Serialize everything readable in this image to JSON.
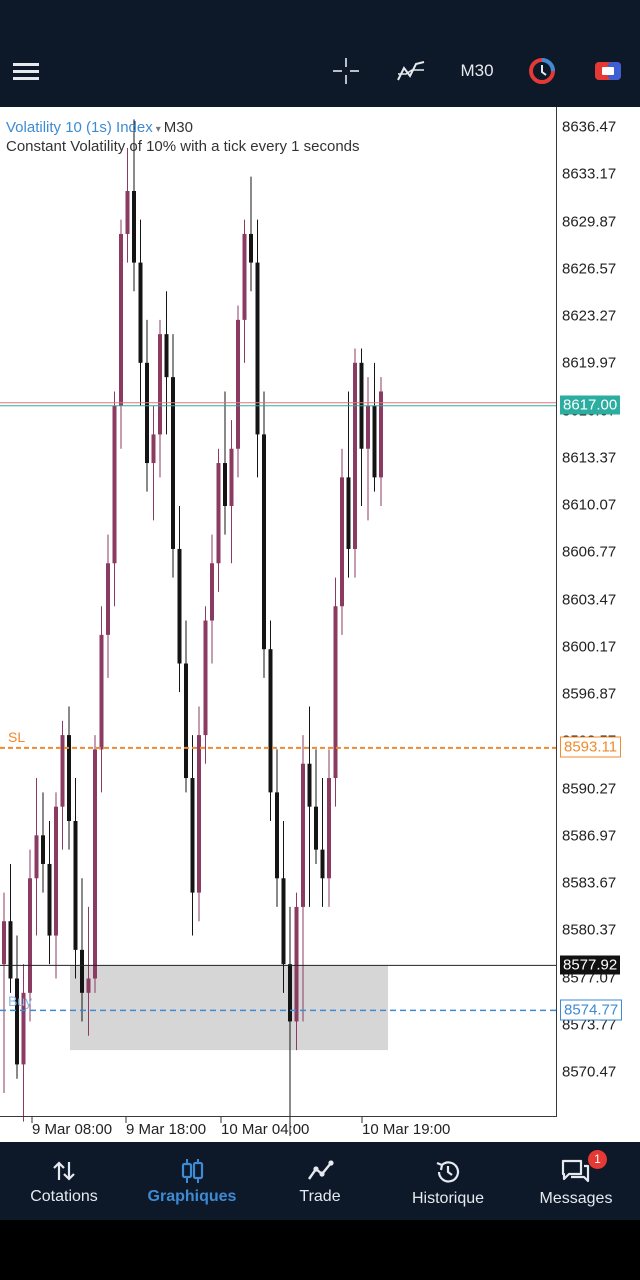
{
  "toolbar": {
    "timeframe": "M30",
    "icons": [
      "menu-icon",
      "crosshair-icon",
      "indicator-icon",
      "connection-icon",
      "one-click-trading-icon"
    ]
  },
  "chart": {
    "symbol": "Volatility 10 (1s) Index",
    "timeframe": "M30",
    "description": "Constant Volatility of 10% with a tick every 1 seconds",
    "sl_label": "SL",
    "buy_label": "Buy",
    "colors": {
      "up": "#8b3a62",
      "down": "#141414",
      "bid": "#2bada0",
      "sl": "#f08a2a",
      "buy": "#3d8bd3",
      "ask": "#e57373"
    },
    "tags": {
      "bid": "8617.00",
      "sl": "8593.11",
      "high": "8577.92",
      "buy": "8574.77"
    }
  },
  "chart_data": {
    "type": "candlestick",
    "y_ticks": [
      "8636.47",
      "8633.17",
      "8629.87",
      "8626.57",
      "8623.27",
      "8619.97",
      "8616.67",
      "8613.37",
      "8610.07",
      "8606.77",
      "8603.47",
      "8600.17",
      "8596.87",
      "8593.57",
      "8590.27",
      "8586.97",
      "8583.67",
      "8580.37",
      "8577.07",
      "8573.77",
      "8570.47"
    ],
    "x_ticks": [
      "9 Mar 08:00",
      "9 Mar 18:00",
      "10 Mar 04:00",
      "10 Mar 19:00"
    ],
    "ylim": [
      8568.4,
      8638.6
    ],
    "levels": {
      "bid": 8617.0,
      "sl": 8593.11,
      "high_line": 8577.92,
      "buy": 8574.77
    },
    "candles": [
      [
        8578,
        8583,
        8569,
        8581
      ],
      [
        8581,
        8585,
        8576,
        8577
      ],
      [
        8577,
        8580,
        8570,
        8571
      ],
      [
        8571,
        8578,
        8567,
        8576
      ],
      [
        8576,
        8586,
        8574,
        8584
      ],
      [
        8584,
        8591,
        8580,
        8587
      ],
      [
        8587,
        8590,
        8583,
        8585
      ],
      [
        8585,
        8588,
        8578,
        8580
      ],
      [
        8580,
        8590,
        8577,
        8589
      ],
      [
        8589,
        8595,
        8586,
        8594
      ],
      [
        8594,
        8596,
        8586,
        8588
      ],
      [
        8588,
        8591,
        8577,
        8579
      ],
      [
        8579,
        8584,
        8574,
        8576
      ],
      [
        8576,
        8582,
        8573,
        8577
      ],
      [
        8577,
        8594,
        8576,
        8593
      ],
      [
        8593,
        8603,
        8590,
        8601
      ],
      [
        8601,
        8608,
        8598,
        8606
      ],
      [
        8606,
        8618,
        8603,
        8617
      ],
      [
        8617,
        8630,
        8614,
        8629
      ],
      [
        8629,
        8635,
        8627,
        8632
      ],
      [
        8632,
        8637,
        8625,
        8627
      ],
      [
        8627,
        8630,
        8617,
        8620
      ],
      [
        8620,
        8623,
        8611,
        8613
      ],
      [
        8613,
        8617,
        8609,
        8615
      ],
      [
        8615,
        8623,
        8612,
        8622
      ],
      [
        8622,
        8625,
        8615,
        8619
      ],
      [
        8619,
        8622,
        8605,
        8607
      ],
      [
        8607,
        8610,
        8597,
        8599
      ],
      [
        8599,
        8602,
        8590,
        8591
      ],
      [
        8591,
        8594,
        8580,
        8583
      ],
      [
        8583,
        8596,
        8581,
        8594
      ],
      [
        8594,
        8603,
        8592,
        8602
      ],
      [
        8602,
        8608,
        8599,
        8606
      ],
      [
        8606,
        8614,
        8604,
        8613
      ],
      [
        8613,
        8618,
        8608,
        8610
      ],
      [
        8610,
        8616,
        8606,
        8614
      ],
      [
        8614,
        8624,
        8612,
        8623
      ],
      [
        8623,
        8630,
        8620,
        8629
      ],
      [
        8629,
        8633,
        8625,
        8627
      ],
      [
        8627,
        8630,
        8612,
        8615
      ],
      [
        8615,
        8618,
        8598,
        8600
      ],
      [
        8600,
        8602,
        8588,
        8590
      ],
      [
        8590,
        8593,
        8582,
        8584
      ],
      [
        8584,
        8588,
        8576,
        8578
      ],
      [
        8578,
        8582,
        8566,
        8574
      ],
      [
        8574,
        8583,
        8572,
        8582
      ],
      [
        8582,
        8594,
        8574,
        8592
      ],
      [
        8592,
        8596,
        8582,
        8589
      ],
      [
        8589,
        8593,
        8585,
        8586
      ],
      [
        8586,
        8591,
        8582,
        8584
      ],
      [
        8584,
        8593,
        8582,
        8591
      ],
      [
        8591,
        8605,
        8589,
        8603
      ],
      [
        8603,
        8614,
        8601,
        8612
      ],
      [
        8612,
        8618,
        8605,
        8607
      ],
      [
        8607,
        8621,
        8605,
        8620
      ],
      [
        8620,
        8621,
        8610,
        8614
      ],
      [
        8614,
        8619,
        8609,
        8617
      ],
      [
        8617,
        8620,
        8611,
        8612
      ],
      [
        8612,
        8619,
        8610,
        8618
      ]
    ]
  },
  "nav": {
    "items": [
      {
        "label": "Cotations"
      },
      {
        "label": "Graphiques"
      },
      {
        "label": "Trade"
      },
      {
        "label": "Historique"
      },
      {
        "label": "Messages"
      }
    ],
    "badge": "1"
  }
}
